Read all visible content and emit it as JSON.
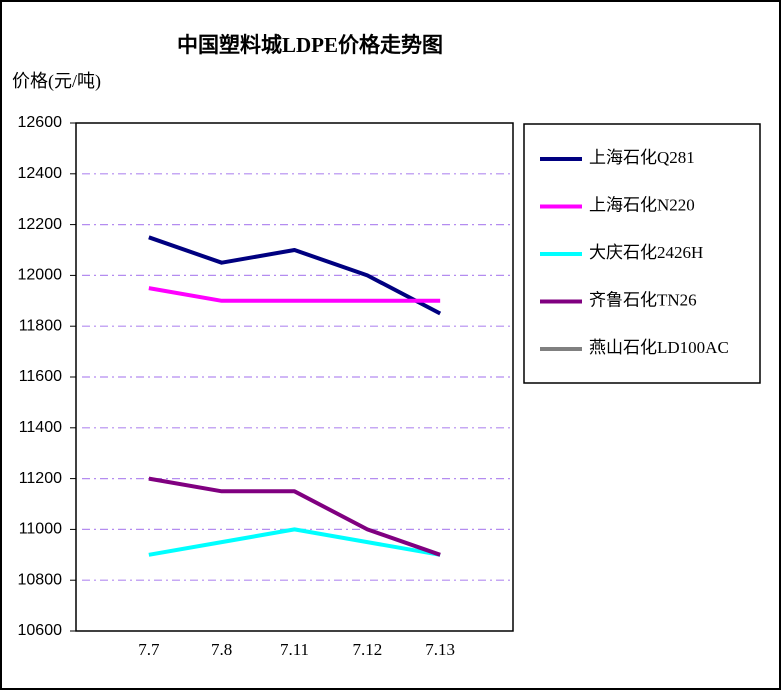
{
  "chart_data": {
    "type": "line",
    "title": "中国塑料城LDPE价格走势图",
    "y_label": "价格(元/吨)",
    "categories": [
      "7.7",
      "7.8",
      "7.11",
      "7.12",
      "7.13"
    ],
    "series": [
      {
        "name": "上海石化Q281",
        "color": "#000080",
        "values": [
          12150,
          12050,
          12100,
          12000,
          11850
        ]
      },
      {
        "name": "上海石化N220",
        "color": "#ff00ff",
        "values": [
          11950,
          11900,
          11900,
          11900,
          11900
        ]
      },
      {
        "name": "大庆石化2426H",
        "color": "#00ffff",
        "values": [
          10900,
          10950,
          11000,
          10950,
          10900
        ]
      },
      {
        "name": "齐鲁石化TN26",
        "color": "#800080",
        "values": [
          11200,
          11150,
          11150,
          11000,
          10900
        ]
      },
      {
        "name": "燕山石化LD100AC",
        "color": "#808080",
        "values": [
          null,
          null,
          null,
          null,
          null
        ]
      }
    ],
    "ylim": [
      10600,
      12600
    ],
    "yticks": [
      10600,
      10800,
      11000,
      11200,
      11400,
      11600,
      11800,
      12000,
      12200,
      12400,
      12600
    ],
    "grid": true,
    "grid_color": "#b48cf0",
    "legend": "right"
  }
}
